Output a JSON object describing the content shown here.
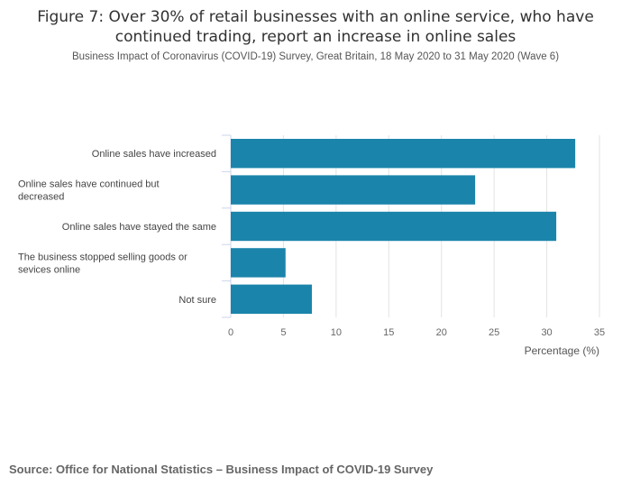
{
  "chart_data": {
    "type": "bar",
    "orientation": "horizontal",
    "title": "Figure 7: Over 30% of retail businesses with an online service, who have continued trading, report an increase in online sales",
    "title_lines": [
      "Figure 7: Over 30% of retail businesses with an online service, who have",
      "continued trading, report an increase in online sales"
    ],
    "subtitle": "Business Impact of Coronavirus (COVID-19) Survey, Great Britain, 18 May 2020 to 31 May 2020 (Wave 6)",
    "categories": [
      "Online sales have increased",
      "Online sales have continued but decreased",
      "Online sales have stayed the same",
      "The business stopped selling goods or sevices online",
      "Not sure"
    ],
    "category_lines": [
      [
        "Online sales have increased"
      ],
      [
        "Online sales have continued but",
        "decreased"
      ],
      [
        "Online sales have stayed the same"
      ],
      [
        "The business stopped selling goods or",
        "sevices online"
      ],
      [
        "Not sure"
      ]
    ],
    "values": [
      32.7,
      23.2,
      30.9,
      5.2,
      7.7
    ],
    "xlabel": "Percentage (%)",
    "ylabel": "",
    "xlim": [
      0,
      35
    ],
    "xticks": [
      0,
      5,
      10,
      15,
      20,
      25,
      30,
      35
    ],
    "grid": true,
    "color": "#1b84ab"
  },
  "source": "Source: Office for National Statistics – Business Impact of COVID-19 Survey"
}
